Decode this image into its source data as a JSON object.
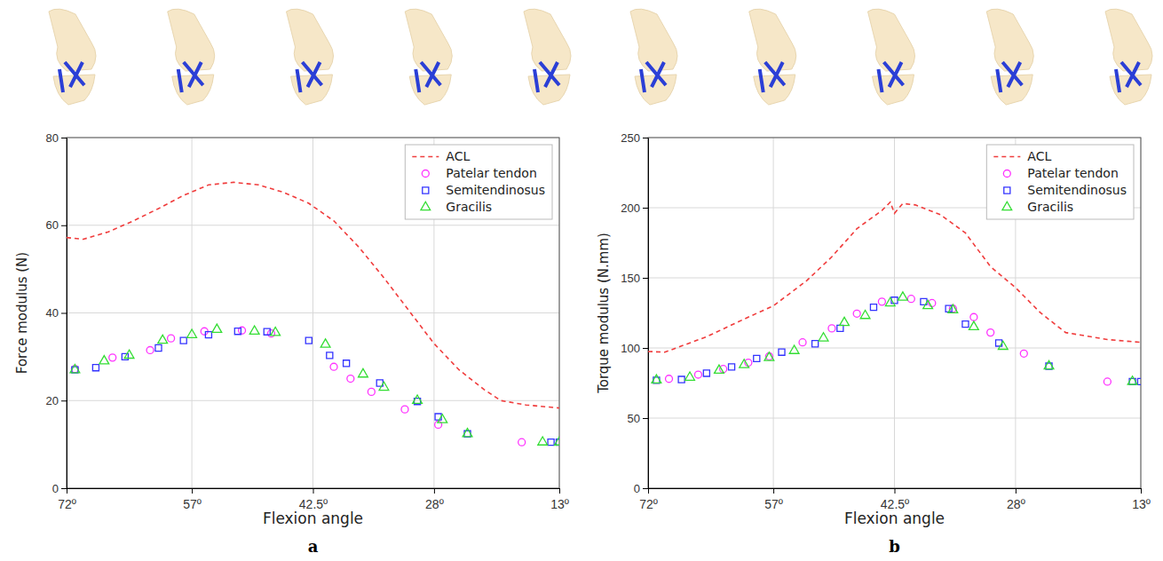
{
  "chart_data": [
    {
      "type": "line",
      "panel_label": "a",
      "x_label": "Flexion angle",
      "y_label": "Force modulus (N)",
      "xlim": [
        72,
        13
      ],
      "ylim": [
        0,
        80
      ],
      "xticks": [
        {
          "value": 72,
          "label": "72º"
        },
        {
          "value": 57,
          "label": "57º"
        },
        {
          "value": 42.5,
          "label": "42.5º"
        },
        {
          "value": 28,
          "label": "28º"
        },
        {
          "value": 13,
          "label": "13º"
        }
      ],
      "yticks": [
        0,
        20,
        40,
        60,
        80
      ],
      "grid": true,
      "legend": "upper right",
      "series": [
        {
          "name": "ACL",
          "type": "line",
          "line_style": "dashed",
          "color": "#f03c3c",
          "x": [
            72,
            70,
            67,
            64,
            61,
            58,
            55,
            52,
            49,
            46,
            43,
            40,
            37,
            34,
            31,
            28,
            25,
            22,
            20,
            17,
            13
          ],
          "values": [
            57.2,
            56.8,
            58.5,
            61,
            63.8,
            66.8,
            69.2,
            69.8,
            69.2,
            67.5,
            65,
            61,
            55,
            48,
            40.5,
            33,
            27,
            22.5,
            20,
            19,
            18.3
          ]
        },
        {
          "name": "Patelar tendon",
          "type": "scatter",
          "marker": "circle",
          "color": "#ff33ff",
          "x": [
            71,
            66.5,
            62,
            59.5,
            55.5,
            51,
            47.5,
            40,
            38,
            35.5,
            31.5,
            27.5,
            17.5
          ],
          "values": [
            27.2,
            29.8,
            31.5,
            34.2,
            35.8,
            36,
            35.3,
            27.7,
            25,
            22,
            18,
            14.5,
            10.5
          ]
        },
        {
          "name": "Semitendinosus",
          "type": "scatter",
          "marker": "square",
          "color": "#3333ff",
          "x": [
            71,
            68.5,
            65,
            61,
            58,
            55,
            51.5,
            48,
            43,
            40.5,
            38.5,
            34.5,
            30,
            27.5,
            24,
            14,
            13
          ],
          "values": [
            27,
            27.5,
            30,
            32,
            33.7,
            35,
            35.8,
            35.7,
            33.7,
            30.3,
            28.5,
            24,
            19.8,
            16.3,
            12.4,
            10.5,
            10.5
          ]
        },
        {
          "name": "Gracilis",
          "type": "scatter",
          "marker": "triangle",
          "color": "#33dd33",
          "x": [
            71,
            67.5,
            64.5,
            60.5,
            57,
            54,
            49.5,
            47,
            41,
            36.5,
            34,
            30,
            27,
            24,
            15,
            13
          ],
          "values": [
            27,
            29,
            30.3,
            33.7,
            35,
            36.2,
            35.8,
            35.5,
            32.8,
            26,
            23,
            20,
            15.6,
            12.4,
            10.5,
            10.5
          ]
        }
      ]
    },
    {
      "type": "line",
      "panel_label": "b",
      "x_label": "Flexion angle",
      "y_label": "Torque modulus (N.mm)",
      "xlim": [
        72,
        13
      ],
      "ylim": [
        0,
        250
      ],
      "xticks": [
        {
          "value": 72,
          "label": "72º"
        },
        {
          "value": 57,
          "label": "57º"
        },
        {
          "value": 42.5,
          "label": "42.5º"
        },
        {
          "value": 28,
          "label": "28º"
        },
        {
          "value": 13,
          "label": "13º"
        }
      ],
      "yticks": [
        0,
        50,
        100,
        150,
        200,
        250
      ],
      "grid": true,
      "legend": "upper right",
      "series": [
        {
          "name": "ACL",
          "type": "line",
          "line_style": "dashed",
          "color": "#f03c3c",
          "x": [
            72,
            70,
            65,
            60,
            57,
            53,
            50,
            47,
            44,
            43,
            42.5,
            41.5,
            40,
            37,
            34,
            31,
            28,
            25,
            22,
            17,
            13
          ],
          "values": [
            97.5,
            97,
            108,
            122,
            130,
            148,
            165,
            185,
            198,
            204,
            196,
            203,
            202,
            195,
            182,
            158,
            143,
            125,
            111,
            106,
            104
          ]
        },
        {
          "name": "Patelar tendon",
          "type": "scatter",
          "marker": "circle",
          "color": "#ff33ff",
          "x": [
            69.5,
            66,
            63,
            60,
            57.5,
            53.5,
            50,
            47,
            44,
            40.5,
            38,
            35.5,
            33,
            31,
            27,
            17
          ],
          "values": [
            78,
            81,
            85,
            89.5,
            94,
            104,
            114,
            124.5,
            133,
            135,
            132,
            128,
            122,
            111,
            96,
            76
          ]
        },
        {
          "name": "Semitendinosus",
          "type": "scatter",
          "marker": "square",
          "color": "#3333ff",
          "x": [
            71,
            68,
            65,
            62,
            59,
            56,
            52,
            49,
            45,
            42.5,
            39,
            36,
            34,
            30,
            24,
            14,
            13
          ],
          "values": [
            77,
            77.5,
            82,
            86.5,
            92.5,
            97,
            103,
            114,
            129,
            134,
            133,
            128,
            117,
            103.5,
            87,
            76,
            76
          ]
        },
        {
          "name": "Gracilis",
          "type": "scatter",
          "marker": "triangle",
          "color": "#33dd33",
          "x": [
            71,
            67,
            63.5,
            60.5,
            57.5,
            54.5,
            51,
            48.5,
            46,
            43,
            41.5,
            38.5,
            35.5,
            33,
            29.5,
            24,
            14
          ],
          "values": [
            77,
            79,
            84,
            88,
            93,
            98,
            107,
            118,
            123,
            132,
            136,
            130,
            127,
            115,
            101,
            87,
            76
          ]
        }
      ]
    }
  ]
}
